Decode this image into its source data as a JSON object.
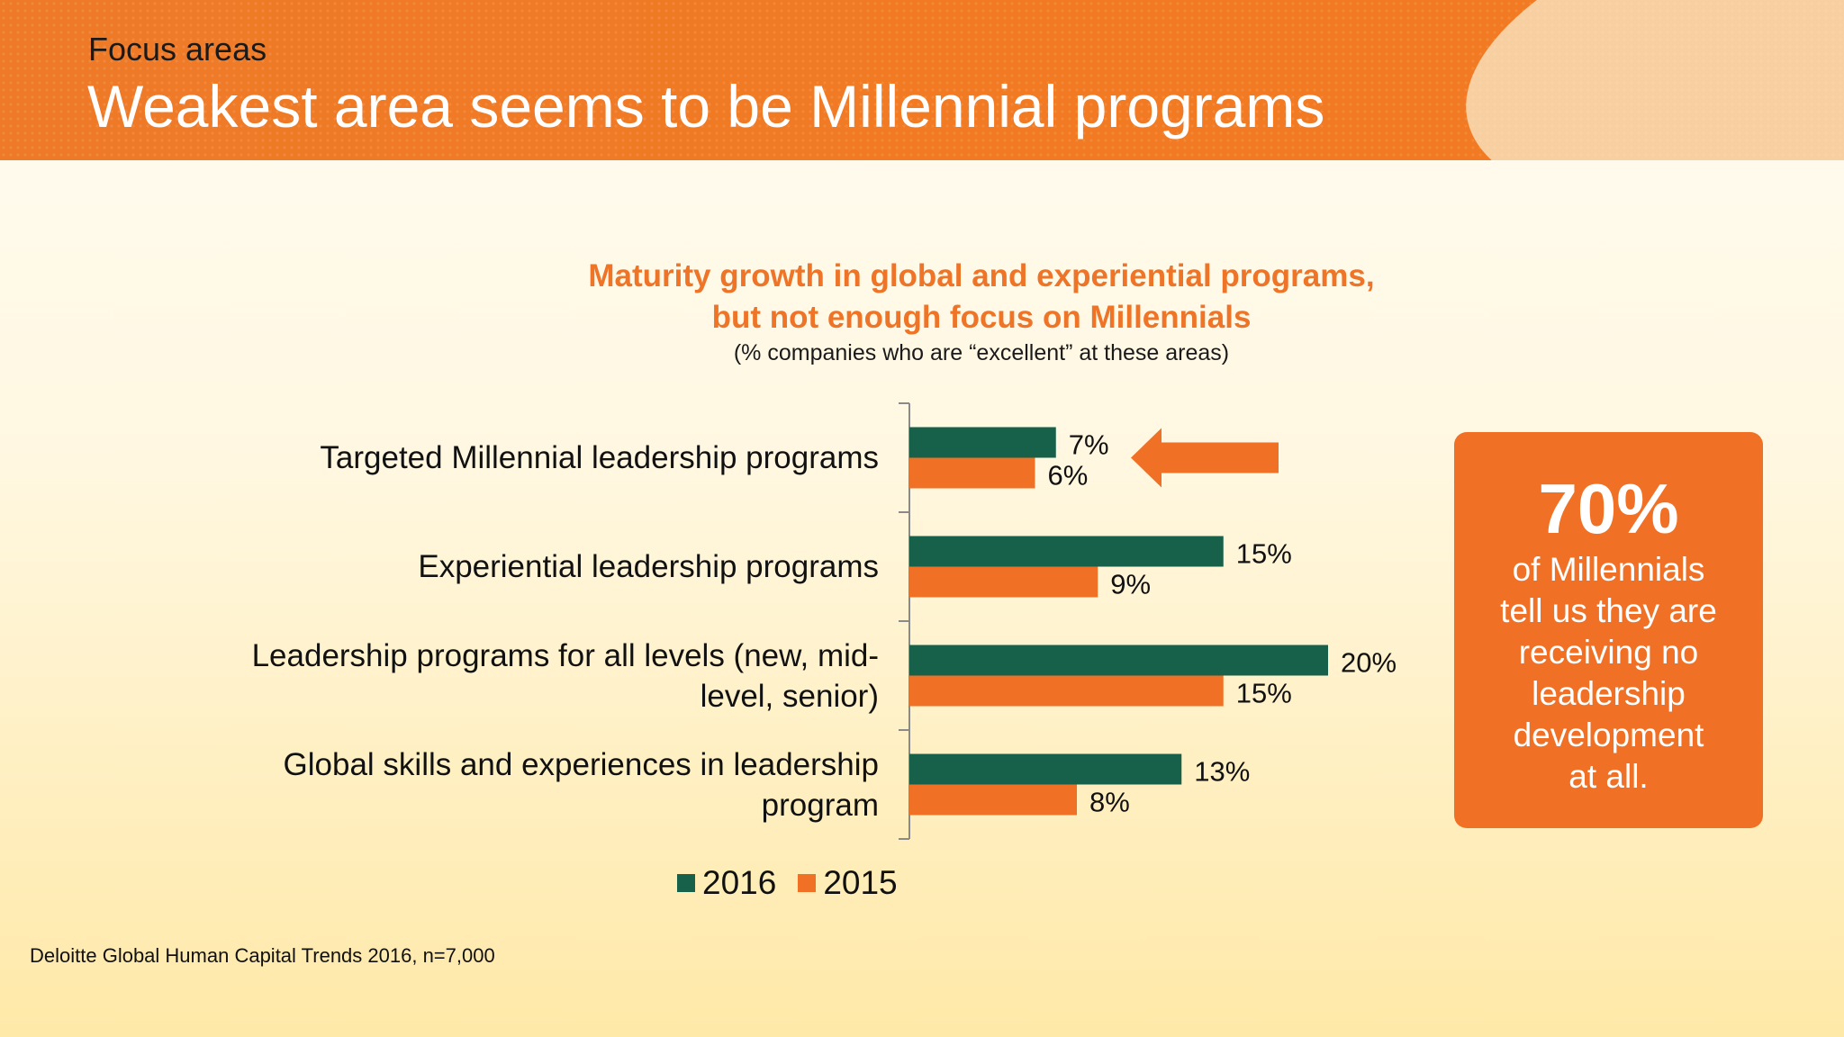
{
  "header": {
    "eyebrow": "Focus areas",
    "headline": "Weakest area seems to be Millennial programs"
  },
  "chart_data": {
    "type": "bar",
    "orientation": "horizontal",
    "title_line1": "Maturity growth in global and experiential programs,",
    "title_line2": "but not enough focus on Millennials",
    "subtitle": "(% companies who are “excellent” at these areas)",
    "categories": [
      [
        "Targeted Millennial leadership programs"
      ],
      [
        "Experiential leadership programs"
      ],
      [
        "Leadership programs for all levels (new, mid-",
        "level, senior)"
      ],
      [
        "Global skills and experiences in leadership",
        "program"
      ]
    ],
    "series": [
      {
        "name": "2016",
        "color": "#17614b",
        "values": [
          7,
          15,
          20,
          13
        ],
        "labels": [
          "7%",
          "15%",
          "20%",
          "13%"
        ]
      },
      {
        "name": "2015",
        "color": "#f07125",
        "values": [
          6,
          9,
          15,
          8
        ],
        "labels": [
          "6%",
          "9%",
          "15%",
          "8%"
        ]
      }
    ],
    "xlim": [
      0,
      20
    ],
    "highlight_category_index": 0,
    "legend_position": "bottom"
  },
  "callout": {
    "stat": "70%",
    "lines": [
      "of Millennials",
      "tell us they are",
      "receiving no",
      "leadership",
      "development",
      "at all."
    ]
  },
  "footer": {
    "source": "Deloitte Global Human Capital Trends 2016, n=7,000"
  }
}
